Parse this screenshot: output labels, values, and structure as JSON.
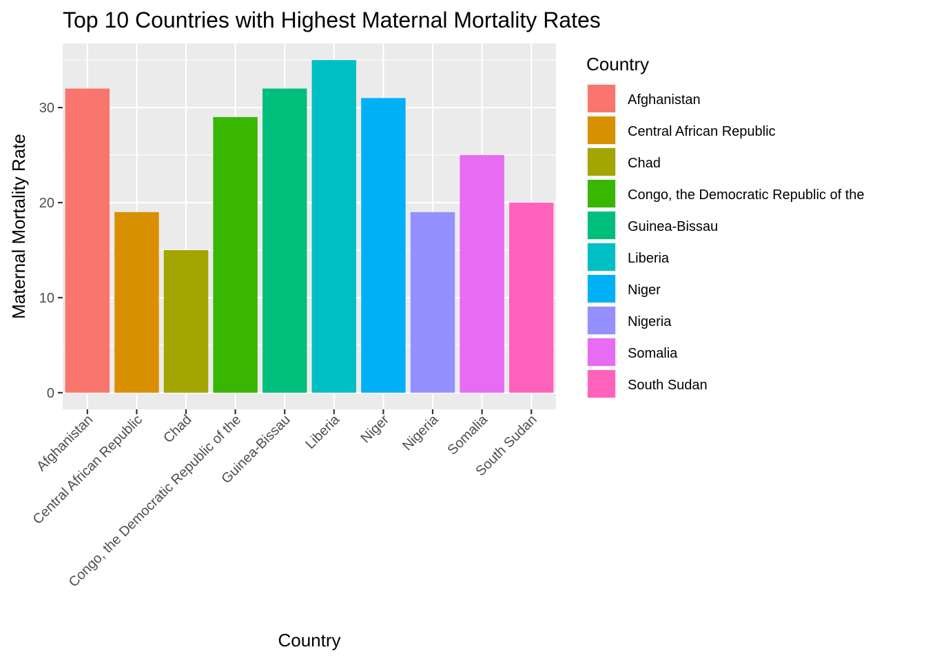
{
  "chart_data": {
    "type": "bar",
    "title": "Top 10 Countries with Highest Maternal Mortality Rates",
    "xlabel": "Country",
    "ylabel": "Maternal Mortality Rate",
    "categories": [
      "Afghanistan",
      "Central African Republic",
      "Chad",
      "Congo, the Democratic Republic of the",
      "Guinea-Bissau",
      "Liberia",
      "Niger",
      "Nigeria",
      "Somalia",
      "South Sudan"
    ],
    "values": [
      32,
      19,
      15,
      29,
      32,
      35,
      31,
      19,
      25,
      20
    ],
    "colors": [
      "#F8766D",
      "#D89000",
      "#A3A500",
      "#39B600",
      "#00BF7D",
      "#00BFC4",
      "#00B0F6",
      "#9590FF",
      "#E76BF3",
      "#FF62BC"
    ],
    "ylim": [
      -1.75,
      36.75
    ],
    "yticks": [
      0,
      10,
      20,
      30
    ],
    "grid": true,
    "panel_background": "#EBEBEB",
    "legend": {
      "title": "Country",
      "placement": "right"
    }
  }
}
